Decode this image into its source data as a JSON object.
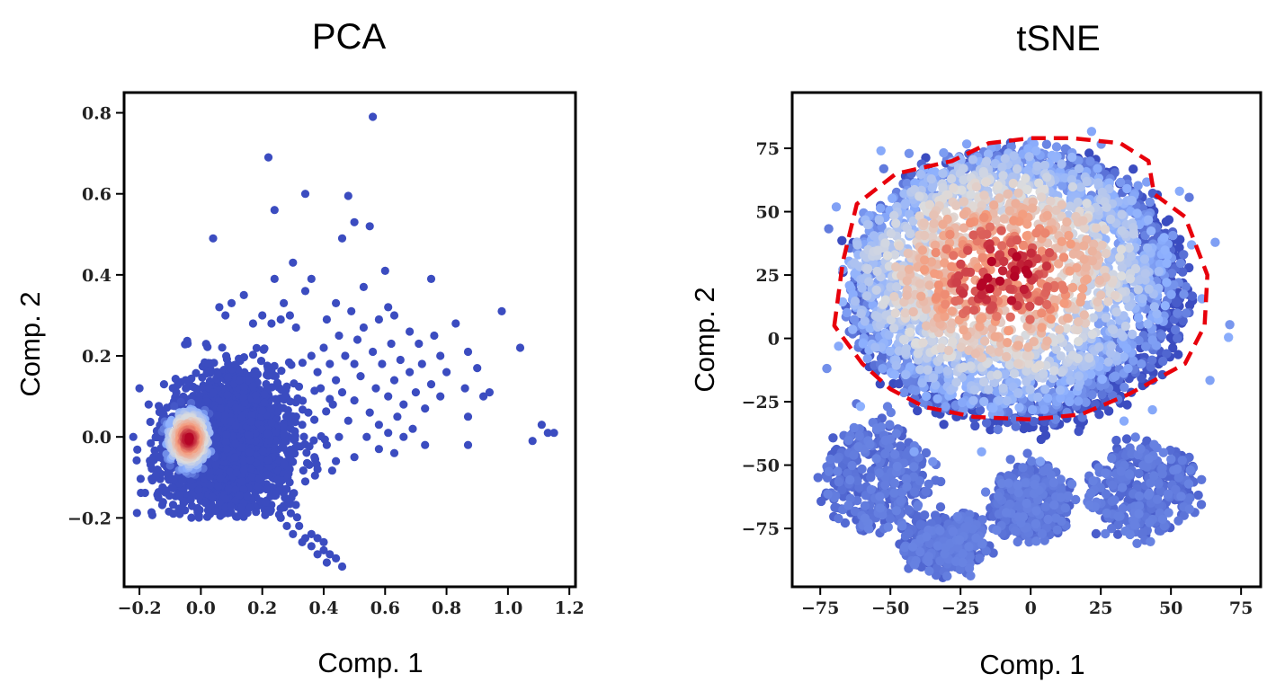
{
  "chart_data": [
    {
      "type": "scatter",
      "title": "PCA",
      "xlabel": "Comp. 1",
      "ylabel": "Comp. 2",
      "xlim": [
        -0.25,
        1.22
      ],
      "ylim": [
        -0.37,
        0.85
      ],
      "xticks": [
        -0.2,
        0.0,
        0.2,
        0.4,
        0.6,
        0.8,
        1.0,
        1.2
      ],
      "xtick_labels": [
        "−0.2",
        "0.0",
        "0.2",
        "0.4",
        "0.6",
        "0.8",
        "1.0",
        "1.2"
      ],
      "yticks": [
        -0.2,
        0.0,
        0.2,
        0.4,
        0.6,
        0.8
      ],
      "ytick_labels": [
        "−0.2",
        "0.0",
        "0.2",
        "0.4",
        "0.6",
        "0.8"
      ],
      "grid": false,
      "colormap": [
        "#3b4cc0",
        "#8db0fe",
        "#dddddd",
        "#f49a7b",
        "#b40426"
      ],
      "dense_core": {
        "center": [
          -0.04,
          -0.005
        ],
        "extent": [
          -0.2,
          0.35,
          -0.18,
          0.25
        ]
      },
      "points": [
        [
          0.56,
          0.79
        ],
        [
          0.22,
          0.69
        ],
        [
          0.34,
          0.6
        ],
        [
          0.48,
          0.595
        ],
        [
          0.24,
          0.56
        ],
        [
          0.5,
          0.53
        ],
        [
          0.55,
          0.52
        ],
        [
          0.46,
          0.49
        ],
        [
          0.04,
          0.49
        ],
        [
          0.3,
          0.43
        ],
        [
          0.6,
          0.41
        ],
        [
          0.24,
          0.39
        ],
        [
          0.36,
          0.39
        ],
        [
          0.75,
          0.39
        ],
        [
          0.53,
          0.37
        ],
        [
          0.34,
          0.36
        ],
        [
          0.44,
          0.33
        ],
        [
          0.61,
          0.32
        ],
        [
          0.49,
          0.31
        ],
        [
          0.98,
          0.31
        ],
        [
          0.63,
          0.3
        ],
        [
          0.41,
          0.29
        ],
        [
          0.58,
          0.29
        ],
        [
          0.83,
          0.28
        ],
        [
          0.53,
          0.27
        ],
        [
          0.68,
          0.26
        ],
        [
          0.76,
          0.25
        ],
        [
          0.45,
          0.25
        ],
        [
          0.51,
          0.24
        ],
        [
          0.71,
          0.23
        ],
        [
          0.62,
          0.23
        ],
        [
          1.04,
          0.22
        ],
        [
          0.56,
          0.21
        ],
        [
          0.87,
          0.21
        ],
        [
          0.78,
          0.2
        ],
        [
          0.47,
          0.2
        ],
        [
          0.65,
          0.19
        ],
        [
          0.72,
          0.18
        ],
        [
          0.59,
          0.18
        ],
        [
          0.9,
          0.17
        ],
        [
          0.8,
          0.16
        ],
        [
          0.68,
          0.16
        ],
        [
          0.52,
          0.15
        ],
        [
          0.63,
          0.14
        ],
        [
          0.75,
          0.13
        ],
        [
          0.86,
          0.12
        ],
        [
          0.57,
          0.12
        ],
        [
          0.7,
          0.11
        ],
        [
          0.94,
          0.11
        ],
        [
          0.61,
          0.1
        ],
        [
          0.78,
          0.1
        ],
        [
          0.5,
          0.09
        ],
        [
          0.66,
          0.08
        ],
        [
          0.73,
          0.07
        ],
        [
          0.92,
          0.1
        ],
        [
          0.55,
          0.06
        ],
        [
          0.64,
          0.05
        ],
        [
          0.87,
          0.05
        ],
        [
          0.48,
          0.04
        ],
        [
          0.58,
          0.03
        ],
        [
          0.69,
          0.02
        ],
        [
          0.66,
          0.0
        ],
        [
          0.54,
          0.0
        ],
        [
          0.61,
          0.01
        ],
        [
          1.11,
          0.03
        ],
        [
          1.13,
          0.01
        ],
        [
          1.15,
          0.01
        ],
        [
          1.08,
          -0.01
        ],
        [
          0.73,
          -0.02
        ],
        [
          0.87,
          -0.02
        ],
        [
          0.58,
          -0.03
        ],
        [
          0.63,
          -0.04
        ],
        [
          0.5,
          -0.05
        ],
        [
          0.44,
          -0.06
        ],
        [
          0.38,
          -0.08
        ],
        [
          0.34,
          -0.11
        ],
        [
          0.3,
          -0.14
        ],
        [
          0.27,
          -0.17
        ],
        [
          0.26,
          -0.2
        ],
        [
          0.28,
          -0.22
        ],
        [
          0.32,
          -0.22
        ],
        [
          0.36,
          -0.24
        ],
        [
          0.34,
          -0.25
        ],
        [
          0.38,
          -0.25
        ],
        [
          0.4,
          -0.26
        ],
        [
          0.36,
          -0.27
        ],
        [
          0.4,
          -0.28
        ],
        [
          0.42,
          -0.29
        ],
        [
          0.38,
          -0.29
        ],
        [
          0.44,
          -0.3
        ],
        [
          0.41,
          -0.31
        ],
        [
          0.46,
          -0.32
        ],
        [
          0.33,
          -0.26
        ],
        [
          0.3,
          -0.24
        ],
        [
          0.4,
          0.22
        ],
        [
          0.42,
          0.18
        ],
        [
          0.38,
          0.16
        ],
        [
          0.44,
          0.14
        ],
        [
          0.36,
          0.2
        ],
        [
          0.46,
          0.11
        ],
        [
          0.5,
          0.18
        ],
        [
          0.43,
          0.08
        ],
        [
          0.39,
          0.12
        ],
        [
          0.35,
          0.06
        ],
        [
          0.45,
          0.0
        ],
        [
          0.41,
          -0.02
        ],
        [
          0.37,
          -0.05
        ],
        [
          0.33,
          0.03
        ],
        [
          0.29,
          0.3
        ],
        [
          0.31,
          0.27
        ],
        [
          0.27,
          0.33
        ],
        [
          0.26,
          0.29
        ],
        [
          0.2,
          0.3
        ],
        [
          0.14,
          0.35
        ],
        [
          0.1,
          0.33
        ],
        [
          0.17,
          0.28
        ],
        [
          0.23,
          0.28
        ],
        [
          0.08,
          0.3
        ],
        [
          0.06,
          0.32
        ],
        [
          -0.05,
          0.14
        ],
        [
          -0.08,
          0.11
        ],
        [
          -0.12,
          0.13
        ],
        [
          -0.2,
          0.12
        ],
        [
          -0.17,
          0.08
        ],
        [
          -0.22,
          0.0
        ]
      ]
    },
    {
      "type": "scatter",
      "title": "tSNE",
      "xlabel": "Comp. 1",
      "ylabel": "Comp. 2",
      "xlim": [
        -85,
        82
      ],
      "ylim": [
        -98,
        97
      ],
      "xticks": [
        -75,
        -50,
        -25,
        0,
        25,
        50,
        75
      ],
      "xtick_labels": [
        "−75",
        "−50",
        "−25",
        "0",
        "25",
        "50",
        "75"
      ],
      "yticks": [
        -75,
        -50,
        -25,
        0,
        25,
        50,
        75
      ],
      "ytick_labels": [
        "−75",
        "−50",
        "−25",
        "0",
        "25",
        "50",
        "75"
      ],
      "grid": false,
      "colormap": [
        "#3b4cc0",
        "#8db0fe",
        "#dddddd",
        "#f49a7b",
        "#b40426"
      ],
      "outline_color": "#e8000b",
      "highlight_outline": [
        [
          -70,
          5
        ],
        [
          -67,
          30
        ],
        [
          -62,
          53
        ],
        [
          -48,
          65
        ],
        [
          -28,
          70
        ],
        [
          -15,
          77
        ],
        [
          0,
          79
        ],
        [
          15,
          79
        ],
        [
          32,
          77
        ],
        [
          42,
          70
        ],
        [
          44,
          57
        ],
        [
          55,
          48
        ],
        [
          63,
          25
        ],
        [
          62,
          5
        ],
        [
          55,
          -10
        ],
        [
          35,
          -22
        ],
        [
          18,
          -30
        ],
        [
          0,
          -32
        ],
        [
          -20,
          -31
        ],
        [
          -38,
          -27
        ],
        [
          -50,
          -20
        ],
        [
          -60,
          -10
        ],
        [
          -70,
          5
        ]
      ],
      "clusters": [
        {
          "label_hint": "main",
          "center": [
            -5,
            20
          ],
          "rx": 60,
          "ry": 55,
          "heat_center": [
            -10,
            25
          ]
        },
        {
          "label_hint": "bottom-left",
          "center": [
            -55,
            -55
          ],
          "rx": 18,
          "ry": 20
        },
        {
          "label_hint": "bottom-mid-left",
          "center": [
            -30,
            -80
          ],
          "rx": 14,
          "ry": 10
        },
        {
          "label_hint": "bottom-mid",
          "center": [
            0,
            -65
          ],
          "rx": 13,
          "ry": 14
        },
        {
          "label_hint": "bottom-right",
          "center": [
            40,
            -60
          ],
          "rx": 18,
          "ry": 18
        }
      ]
    }
  ]
}
